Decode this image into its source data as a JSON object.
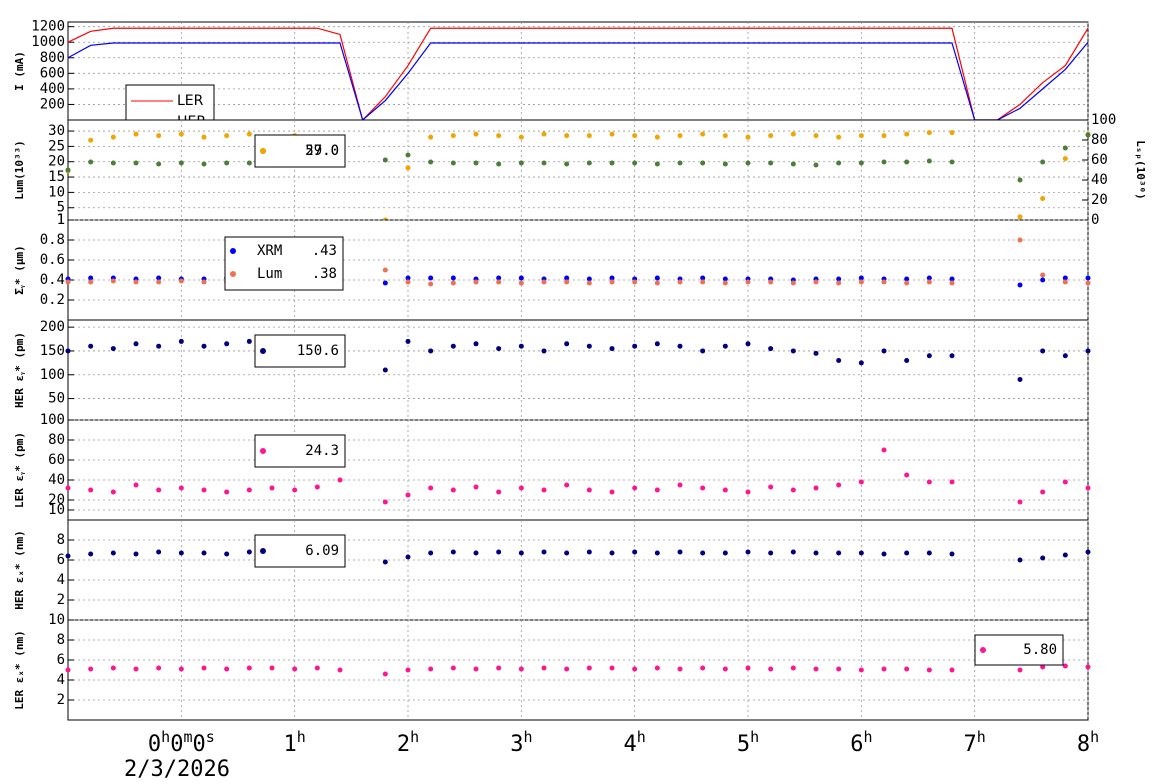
{
  "chart_data": [
    {
      "type": "line",
      "ylabel": "I (mA)",
      "ylim": [
        0,
        1260
      ],
      "yticks": [
        200,
        400,
        600,
        800,
        1000,
        1200
      ],
      "xlim": [
        -1,
        8
      ],
      "x": [
        -1,
        -0.8,
        -0.6,
        -0.4,
        -0.2,
        0,
        0.2,
        0.4,
        0.6,
        0.8,
        1,
        1.2,
        1.4,
        1.6,
        1.8,
        2,
        2.2,
        2.4,
        2.6,
        2.8,
        3,
        3.2,
        3.4,
        3.6,
        3.8,
        4,
        4.2,
        4.4,
        4.6,
        4.8,
        5,
        5.2,
        5.4,
        5.6,
        5.8,
        6,
        6.2,
        6.4,
        6.6,
        6.8,
        7,
        7.2,
        7.4,
        7.6,
        7.8,
        8
      ],
      "series": [
        {
          "name": "LER",
          "color": "#ff0000",
          "values": [
            1000,
            1140,
            1180,
            1180,
            1180,
            1180,
            1180,
            1180,
            1180,
            1180,
            1180,
            1180,
            1100,
            0,
            300,
            700,
            1180,
            1180,
            1180,
            1180,
            1180,
            1180,
            1180,
            1180,
            1180,
            1180,
            1180,
            1180,
            1180,
            1180,
            1180,
            1180,
            1180,
            1180,
            1180,
            1180,
            1180,
            1180,
            1180,
            1180,
            0,
            0,
            200,
            480,
            700,
            1180
          ]
        },
        {
          "name": "HER",
          "color": "#0000ff",
          "values": [
            800,
            960,
            990,
            990,
            990,
            990,
            990,
            990,
            990,
            990,
            990,
            990,
            990,
            0,
            250,
            600,
            990,
            990,
            990,
            990,
            990,
            990,
            990,
            990,
            990,
            990,
            990,
            990,
            990,
            990,
            990,
            990,
            990,
            990,
            990,
            990,
            990,
            990,
            990,
            990,
            0,
            0,
            150,
            400,
            650,
            1000
          ]
        }
      ]
    },
    {
      "type": "scatter",
      "ylabel": "Lum(10³³)",
      "ylim": [
        1,
        33.6
      ],
      "yticks": [
        1,
        5,
        10,
        15,
        20,
        25,
        30
      ],
      "y2label": "Lₛₚ(10³⁰)",
      "y2lim": [
        0,
        100
      ],
      "y2ticks": [
        0,
        20,
        40,
        60,
        80,
        100
      ],
      "series": [
        {
          "color": "#f0a500",
          "readout": "29.0",
          "values": [
            17,
            27,
            28,
            29,
            28.5,
            29,
            28,
            28.5,
            29,
            28,
            28.5,
            28,
            28,
            null,
            1,
            18,
            28,
            28.5,
            29,
            28.5,
            28,
            29,
            28.5,
            28.5,
            29,
            28.5,
            28,
            28.5,
            29,
            28.5,
            28,
            28.5,
            29,
            28.5,
            28,
            28.5,
            28.5,
            29,
            29.5,
            29.5,
            null,
            null,
            2,
            8,
            21,
            29
          ]
        },
        {
          "color": "#4a7f3a",
          "axis": "y2",
          "readout": "57.0",
          "values": [
            50,
            58,
            57,
            57,
            56,
            57,
            56,
            57,
            57,
            56,
            57,
            57,
            58,
            null,
            60,
            65,
            58,
            57,
            57,
            56,
            57,
            57,
            56,
            57,
            57,
            57,
            56,
            57,
            57,
            56,
            57,
            57,
            56,
            55,
            57,
            57,
            58,
            58,
            59,
            58,
            null,
            null,
            40,
            58,
            72,
            85
          ]
        }
      ]
    },
    {
      "type": "scatter",
      "ylabel": "Σᵧ* (μm)",
      "ylim": [
        0,
        1
      ],
      "yticks": [
        0.2,
        0.4,
        0.6,
        0.8,
        1
      ],
      "series": [
        {
          "name": "XRM",
          "color": "#0000ff",
          "readout": ".43",
          "values": [
            0.41,
            0.42,
            0.42,
            0.41,
            0.42,
            0.41,
            0.41,
            0.42,
            0.42,
            0.41,
            0.41,
            0.42,
            0.41,
            null,
            0.37,
            0.42,
            0.42,
            0.42,
            0.41,
            0.42,
            0.42,
            0.41,
            0.42,
            0.41,
            0.42,
            0.41,
            0.42,
            0.41,
            0.42,
            0.41,
            0.41,
            0.41,
            0.4,
            0.41,
            0.41,
            0.42,
            0.41,
            0.41,
            0.42,
            0.41,
            null,
            null,
            0.35,
            0.4,
            0.42,
            0.42
          ]
        },
        {
          "name": "Lum",
          "color": "#f07050",
          "readout": ".38",
          "values": [
            0.38,
            0.38,
            0.39,
            0.38,
            0.38,
            0.39,
            0.38,
            0.38,
            0.39,
            0.38,
            0.38,
            0.38,
            0.38,
            null,
            0.5,
            0.38,
            0.36,
            0.37,
            0.38,
            0.38,
            0.37,
            0.38,
            0.38,
            0.37,
            0.38,
            0.38,
            0.37,
            0.38,
            0.38,
            0.37,
            0.38,
            0.38,
            0.37,
            0.38,
            0.37,
            0.38,
            0.38,
            0.37,
            0.38,
            0.37,
            null,
            null,
            0.8,
            0.45,
            0.38,
            0.37
          ]
        }
      ]
    },
    {
      "type": "scatter",
      "ylabel": "HER εᵧ* (pm)",
      "ylim": [
        5,
        215
      ],
      "yticks": [
        50,
        100,
        150,
        200
      ],
      "series": [
        {
          "color": "#000080",
          "readout": "150.6",
          "values": [
            150,
            160,
            155,
            165,
            160,
            170,
            160,
            165,
            170,
            165,
            160,
            155,
            150,
            null,
            110,
            170,
            150,
            160,
            165,
            155,
            160,
            150,
            165,
            160,
            155,
            160,
            165,
            160,
            150,
            160,
            165,
            155,
            150,
            145,
            130,
            125,
            150,
            130,
            140,
            140,
            null,
            null,
            90,
            150,
            140,
            150
          ]
        }
      ]
    },
    {
      "type": "scatter",
      "ylabel": "LER εᵧ* (pm)",
      "ylim": [
        0,
        100
      ],
      "yticks": [
        10,
        20,
        40,
        60,
        80,
        100
      ],
      "series": [
        {
          "color": "#ff1493",
          "readout": "24.3",
          "values": [
            32,
            30,
            28,
            35,
            30,
            32,
            30,
            28,
            30,
            32,
            30,
            33,
            40,
            null,
            18,
            25,
            32,
            30,
            33,
            28,
            32,
            30,
            35,
            30,
            28,
            32,
            30,
            35,
            32,
            30,
            28,
            33,
            30,
            32,
            35,
            38,
            70,
            45,
            38,
            38,
            null,
            null,
            18,
            28,
            38,
            32
          ]
        }
      ]
    },
    {
      "type": "scatter",
      "ylabel": "HER εₓ* (nm)",
      "ylim": [
        0,
        10
      ],
      "yticks": [
        2,
        4,
        6,
        8
      ],
      "series": [
        {
          "color": "#000080",
          "readout": "6.09",
          "values": [
            6.4,
            6.6,
            6.7,
            6.6,
            6.8,
            6.7,
            6.7,
            6.6,
            6.8,
            6.7,
            6.6,
            6.7,
            6.7,
            null,
            5.8,
            6.3,
            6.7,
            6.8,
            6.7,
            6.8,
            6.7,
            6.8,
            6.7,
            6.8,
            6.7,
            6.8,
            6.7,
            6.8,
            6.7,
            6.7,
            6.8,
            6.7,
            6.8,
            6.7,
            6.7,
            6.7,
            6.6,
            6.7,
            6.7,
            6.6,
            null,
            null,
            6.0,
            6.2,
            6.5,
            6.8
          ]
        }
      ]
    },
    {
      "type": "scatter",
      "ylabel": "LER εₓ* (nm)",
      "ylim": [
        0,
        10
      ],
      "yticks": [
        2,
        4,
        6,
        8,
        10
      ],
      "xticks": [
        {
          "value": 0,
          "label": "0h0m0s"
        },
        {
          "value": 1,
          "label": "1h"
        },
        {
          "value": 2,
          "label": "2h"
        },
        {
          "value": 3,
          "label": "3h"
        },
        {
          "value": 4,
          "label": "4h"
        },
        {
          "value": 5,
          "label": "5h"
        },
        {
          "value": 6,
          "label": "6h"
        },
        {
          "value": 7,
          "label": "7h"
        },
        {
          "value": 8,
          "label": "8h"
        }
      ],
      "date": "2/3/2026",
      "series": [
        {
          "color": "#ff1493",
          "readout": "5.80",
          "values": [
            5.0,
            5.1,
            5.2,
            5.1,
            5.2,
            5.1,
            5.2,
            5.1,
            5.2,
            5.2,
            5.1,
            5.2,
            5.0,
            null,
            4.6,
            5.0,
            5.1,
            5.2,
            5.1,
            5.2,
            5.1,
            5.2,
            5.1,
            5.2,
            5.2,
            5.1,
            5.2,
            5.1,
            5.2,
            5.1,
            5.2,
            5.1,
            5.2,
            5.1,
            5.1,
            5.0,
            5.1,
            5.1,
            5.0,
            5.0,
            null,
            null,
            5.0,
            5.3,
            5.4,
            5.3
          ]
        }
      ]
    }
  ]
}
